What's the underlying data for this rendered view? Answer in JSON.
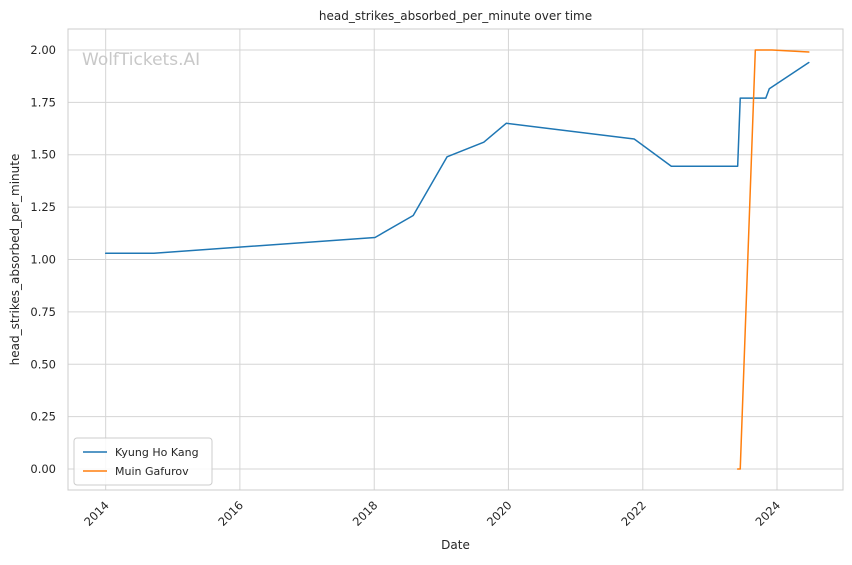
{
  "chart_data": {
    "type": "line",
    "title": "head_strikes_absorbed_per_minute over time",
    "xlabel": "Date",
    "ylabel": "head_strikes_absorbed_per_minute",
    "watermark": "WolfTickets.AI",
    "x_ticks": [
      "2014",
      "2016",
      "2018",
      "2020",
      "2022",
      "2024"
    ],
    "y_ticks": [
      "0.00",
      "0.25",
      "0.50",
      "0.75",
      "1.00",
      "1.25",
      "1.50",
      "1.75",
      "2.00"
    ],
    "xlim": [
      "2013-06-10",
      "2024-12-25"
    ],
    "ylim": [
      -0.1,
      2.1
    ],
    "grid": true,
    "legend_position": "lower-left",
    "series": [
      {
        "name": "Kyung Ho Kang",
        "color": "#1f77b4",
        "points": [
          {
            "x": "2014-01-01",
            "y": 1.03
          },
          {
            "x": "2014-09-20",
            "y": 1.03
          },
          {
            "x": "2018-01-05",
            "y": 1.105
          },
          {
            "x": "2018-08-01",
            "y": 1.21
          },
          {
            "x": "2019-02-01",
            "y": 1.49
          },
          {
            "x": "2019-08-20",
            "y": 1.56
          },
          {
            "x": "2019-12-20",
            "y": 1.65
          },
          {
            "x": "2021-11-15",
            "y": 1.575
          },
          {
            "x": "2022-06-05",
            "y": 1.445
          },
          {
            "x": "2023-06-01",
            "y": 1.445
          },
          {
            "x": "2023-06-15",
            "y": 1.77
          },
          {
            "x": "2023-11-01",
            "y": 1.77
          },
          {
            "x": "2023-11-20",
            "y": 1.815
          },
          {
            "x": "2024-06-22",
            "y": 1.94
          }
        ]
      },
      {
        "name": "Muin Gafurov",
        "color": "#ff7f0e",
        "points": [
          {
            "x": "2023-06-01",
            "y": 0.0
          },
          {
            "x": "2023-06-15",
            "y": 0.0
          },
          {
            "x": "2023-09-05",
            "y": 2.0
          },
          {
            "x": "2023-12-05",
            "y": 2.0
          },
          {
            "x": "2024-06-22",
            "y": 1.99
          }
        ]
      }
    ]
  }
}
